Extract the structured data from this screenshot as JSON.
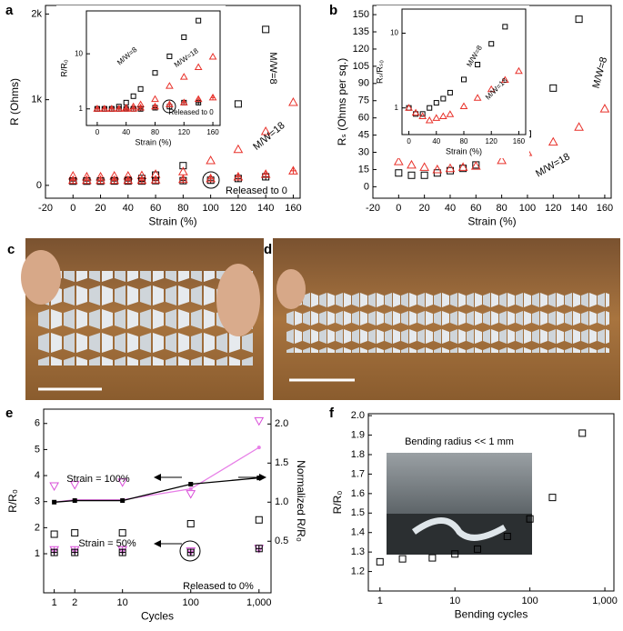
{
  "chart_data": [
    {
      "type": "scatter",
      "panel": "a",
      "xlabel": "Strain (%)",
      "ylabel": "R (Ohms)",
      "xlim": [
        -20,
        165
      ],
      "ylim": [
        -150,
        2100
      ],
      "xticks": [
        -20,
        0,
        20,
        40,
        60,
        80,
        100,
        120,
        140,
        160
      ],
      "yticks": [
        0,
        {
          "value": 1000,
          "label": "1k"
        },
        {
          "value": 2000,
          "label": "2k"
        }
      ],
      "x": [
        0,
        10,
        20,
        30,
        40,
        50,
        60,
        80,
        100,
        120,
        140,
        160
      ],
      "series": [
        {
          "name": "M/W=8",
          "color": "#000000",
          "marker": "square",
          "values": [
            50,
            50,
            50,
            55,
            60,
            80,
            120,
            230,
            430,
            950,
            1820,
            null
          ]
        },
        {
          "name": "M/W=18",
          "color": "#e8312a",
          "marker": "triangle",
          "values": [
            110,
            100,
            100,
            110,
            110,
            115,
            130,
            160,
            290,
            420,
            630,
            970
          ]
        },
        {
          "color": "#000000",
          "marker": "square",
          "crossed": true,
          "values": [
            50,
            50,
            50,
            50,
            50,
            50,
            55,
            55,
            60,
            80,
            100,
            null
          ]
        },
        {
          "color": "#e8312a",
          "marker": "triangle",
          "crossed": true,
          "values": [
            60,
            60,
            60,
            60,
            60,
            60,
            65,
            70,
            80,
            100,
            130,
            170
          ]
        }
      ],
      "annotations": [
        "Released to 0"
      ],
      "inset": {
        "xlabel": "Strain (%)",
        "ylabel": "R/R₀",
        "xlim": [
          -15,
          170
        ],
        "ylim": [
          0.5,
          60
        ],
        "yscale": "log",
        "xticks": [
          0,
          40,
          80,
          120,
          160
        ],
        "yticks": [
          1,
          10
        ],
        "x": [
          0,
          10,
          20,
          30,
          40,
          50,
          60,
          80,
          100,
          120,
          140,
          160
        ],
        "series": [
          {
            "name": "M/W=8",
            "color": "#000000",
            "marker": "square",
            "values": [
              1,
              1,
              1,
              1.1,
              1.3,
              1.7,
              2.3,
              4.5,
              9,
              20,
              40,
              null
            ]
          },
          {
            "name": "M/W=18",
            "color": "#e8312a",
            "marker": "triangle",
            "values": [
              1,
              1,
              1,
              1,
              1.05,
              1.1,
              1.2,
              1.5,
              2.6,
              3.8,
              5.7,
              8.8
            ]
          },
          {
            "color": "#000000",
            "marker": "square",
            "crossed": true,
            "values": [
              1,
              1,
              1,
              1,
              1,
              1,
              1,
              1.05,
              1.1,
              1.3,
              1.3,
              null
            ]
          },
          {
            "color": "#e8312a",
            "marker": "triangle",
            "crossed": true,
            "values": [
              1,
              1,
              1,
              1,
              1,
              1,
              1.05,
              1.1,
              1.2,
              1.3,
              1.5,
              1.6
            ]
          }
        ],
        "annotations": [
          "Released to 0"
        ]
      }
    },
    {
      "type": "scatter",
      "panel": "b",
      "xlabel": "Strain (%)",
      "ylabel": "Rₛ (Ohms per sq.)",
      "xlim": [
        -20,
        165
      ],
      "ylim": [
        -10,
        158
      ],
      "xticks": [
        -20,
        0,
        20,
        40,
        60,
        80,
        100,
        120,
        140,
        160
      ],
      "yticks": [
        0,
        15,
        30,
        45,
        60,
        75,
        90,
        105,
        120,
        135,
        150
      ],
      "x": [
        0,
        10,
        20,
        30,
        40,
        50,
        60,
        80,
        100,
        120,
        140,
        160
      ],
      "series": [
        {
          "name": "M/W=8",
          "color": "#000000",
          "marker": "square",
          "values": [
            12,
            10,
            10,
            12,
            14,
            16,
            19,
            29,
            46,
            86,
            146,
            null
          ]
        },
        {
          "name": "M/W=18",
          "color": "#e8312a",
          "marker": "triangle",
          "values": [
            22,
            19,
            17,
            15,
            16,
            17,
            18,
            23,
            30,
            39,
            52,
            68
          ]
        }
      ],
      "inset": {
        "xlabel": "Strain (%)",
        "ylabel": "Rₛ/Rₛ₀",
        "xlim": [
          -10,
          170
        ],
        "ylim": [
          0.44,
          21
        ],
        "yscale": "log",
        "xticks": [
          0,
          40,
          80,
          120,
          160
        ],
        "yticks": [
          1,
          10
        ],
        "x": [
          0,
          10,
          20,
          30,
          40,
          50,
          60,
          80,
          100,
          120,
          140,
          160
        ],
        "series": [
          {
            "name": "M/W=8",
            "color": "#000000",
            "marker": "square",
            "values": [
              1,
              0.83,
              0.83,
              1,
              1.17,
              1.33,
              1.6,
              2.4,
              3.8,
              7.2,
              12.2,
              null
            ]
          },
          {
            "name": "M/W=18",
            "color": "#e8312a",
            "marker": "triangle",
            "values": [
              1,
              0.86,
              0.77,
              0.68,
              0.73,
              0.77,
              0.82,
              1.05,
              1.36,
              1.77,
              2.36,
              3.1
            ]
          }
        ]
      }
    },
    {
      "type": "scatter",
      "panel": "e",
      "xlabel": "Cycles",
      "ylabel": "R/R₀",
      "y2label": "Normalized R/R₀",
      "xscale": "log",
      "xlim": [
        0.7,
        1500
      ],
      "ylim": [
        -0.5,
        6.55
      ],
      "y2lim": [
        -0.16,
        2.19
      ],
      "xticks": [
        1,
        2,
        10,
        100,
        {
          "value": 1000,
          "label": "1,000"
        }
      ],
      "yticks": [
        1,
        2,
        3,
        4,
        5,
        6
      ],
      "y2ticks": [
        0.5,
        {
          "value": 1,
          "label": "1.0"
        },
        1.5,
        {
          "value": 2,
          "label": "2.0"
        }
      ],
      "x": [
        1,
        2,
        10,
        100,
        1000
      ],
      "series": [
        {
          "color": "#d94fd9",
          "marker": "triangle-down",
          "values": [
            3.6,
            3.65,
            3.75,
            3.3,
            6.1
          ]
        },
        {
          "color": "#000000",
          "marker": "square",
          "values": [
            1.75,
            1.8,
            1.8,
            2.15,
            2.3
          ]
        },
        {
          "color": "#d94fd9",
          "marker": "triangle-down",
          "crossed": true,
          "values": [
            1.15,
            1.15,
            1.15,
            1.1,
            1.2
          ]
        },
        {
          "color": "#000000",
          "marker": "square",
          "crossed": true,
          "values": [
            1.05,
            1.05,
            1.05,
            1.05,
            1.2
          ]
        },
        {
          "color": "#e77fe7",
          "marker": "dot",
          "line": true,
          "axis": "y2",
          "values": [
            1.0,
            1.03,
            1.03,
            1.17,
            1.7
          ]
        },
        {
          "color": "#000000",
          "marker": "square",
          "filled": true,
          "line": true,
          "axis": "y2",
          "values": [
            1.0,
            1.02,
            1.02,
            1.23,
            1.31
          ]
        }
      ],
      "annotations": [
        "Strain = 100%",
        "Strain = 50%",
        "Released to 0%"
      ]
    },
    {
      "type": "scatter",
      "panel": "f",
      "xlabel": "Bending cycles",
      "ylabel": "R/R₀",
      "xscale": "log",
      "xlim": [
        0.7,
        1320
      ],
      "ylim": [
        1.1,
        2.01
      ],
      "xticks": [
        1,
        10,
        100,
        {
          "value": 1000,
          "label": "1,000"
        }
      ],
      "yticks": [
        1.2,
        1.3,
        1.4,
        1.5,
        1.6,
        1.7,
        1.8,
        1.9,
        {
          "value": 2,
          "label": "2.0"
        }
      ],
      "x": [
        1,
        2,
        5,
        10,
        20,
        50,
        100,
        200,
        500
      ],
      "series": [
        {
          "color": "#000000",
          "marker": "square",
          "values": [
            1.25,
            1.265,
            1.27,
            1.29,
            1.315,
            1.38,
            1.47,
            1.58,
            1.91
          ]
        }
      ],
      "annotations": [
        "Bending radius << 1 mm"
      ]
    }
  ],
  "photos": [
    {
      "panel": "c"
    },
    {
      "panel": "d"
    }
  ]
}
